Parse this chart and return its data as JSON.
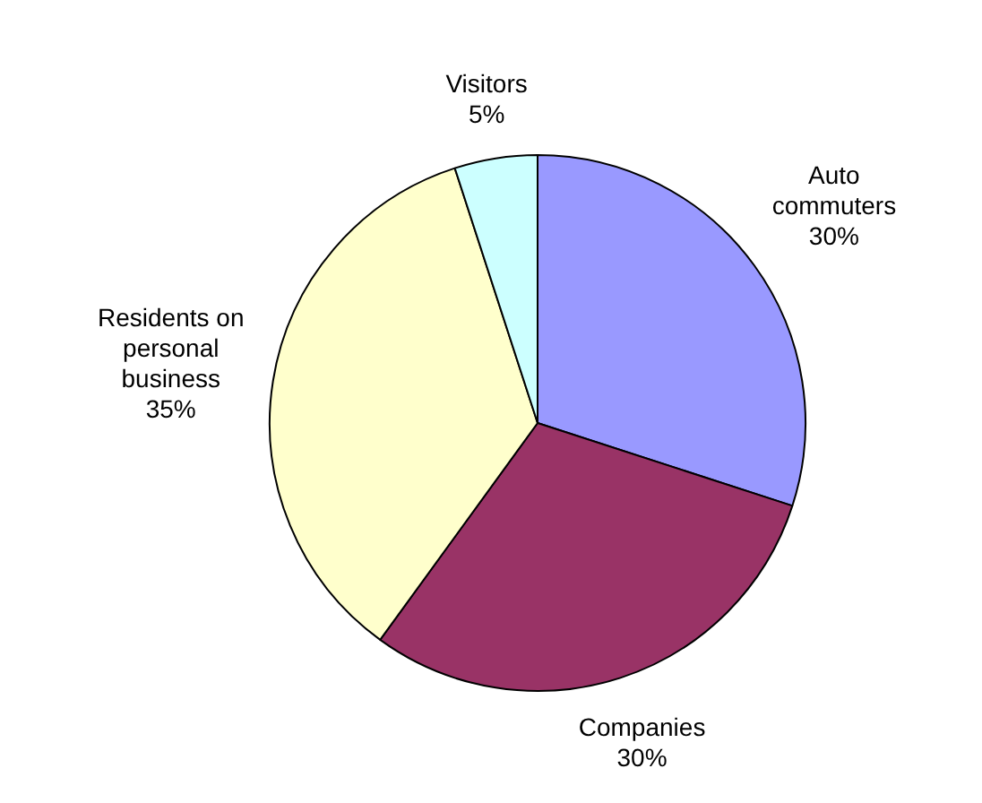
{
  "chart_data": {
    "type": "pie",
    "categories": [
      "Auto commuters",
      "Companies",
      "Residents on personal business",
      "Visitors"
    ],
    "values": [
      30,
      30,
      35,
      5
    ],
    "colors": [
      "#9999ff",
      "#993366",
      "#ffffcc",
      "#ccffff"
    ],
    "value_labels": [
      "30%",
      "30%",
      "35%",
      "5%"
    ],
    "legend": false
  }
}
